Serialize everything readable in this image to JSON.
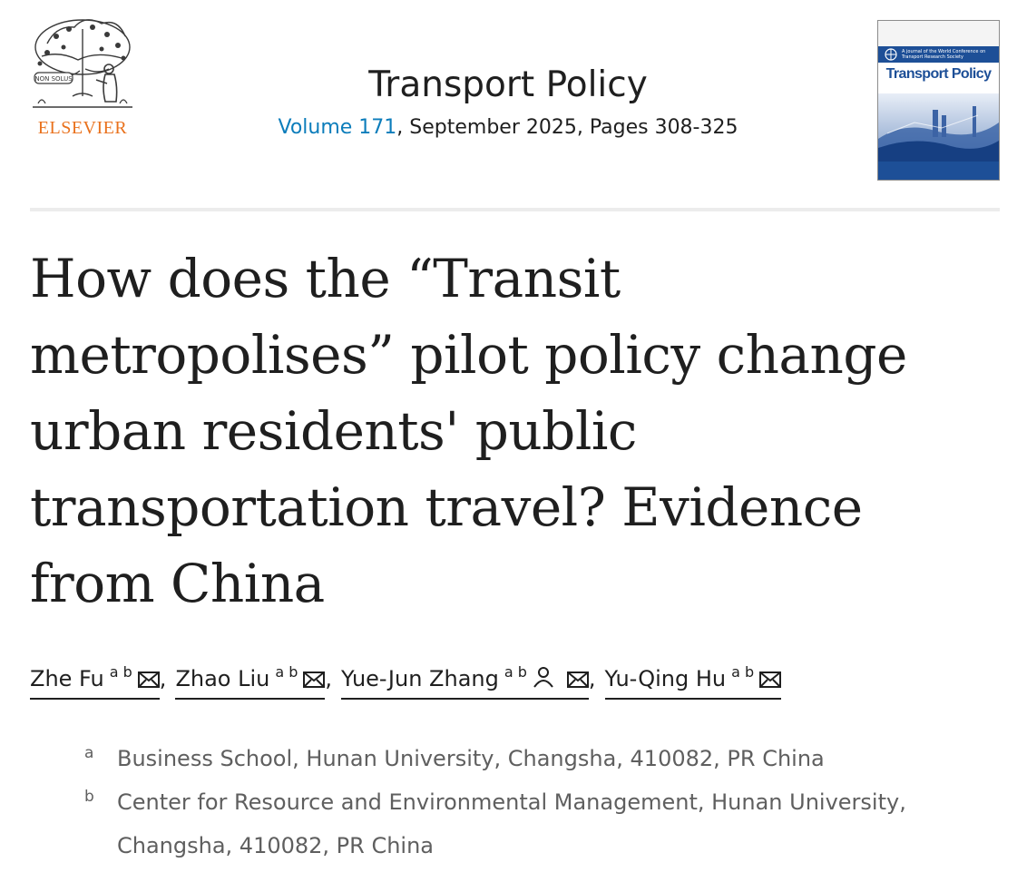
{
  "publisher": {
    "name": "ELSEVIER",
    "logo_motto": "NON SOLUS",
    "brand_color": "#e9711c"
  },
  "journal": {
    "title": "Transport Policy",
    "volume_link": "Volume 171",
    "issue_rest": ", September 2025, Pages 308-325",
    "link_color": "#0c7dbb"
  },
  "cover": {
    "band_text": "A journal of the World Conference on Transport Research Society",
    "title": "Transport Policy",
    "brand_color": "#1d4f97"
  },
  "article": {
    "title": "How does the “Transit metropolises” pilot policy change urban residents' public transportation travel? Evidence from China"
  },
  "authors": [
    {
      "name": "Zhe Fu",
      "affils": "a b",
      "icons": [
        "envelope-icon"
      ]
    },
    {
      "name": "Zhao Liu",
      "affils": "a b",
      "icons": [
        "envelope-icon"
      ]
    },
    {
      "name": "Yue-Jun Zhang",
      "affils": "a b",
      "icons": [
        "person-icon",
        "envelope-icon"
      ]
    },
    {
      "name": "Yu-Qing Hu",
      "affils": "a b",
      "icons": [
        "envelope-icon"
      ]
    }
  ],
  "separator": ",",
  "affiliations": [
    {
      "label": "a",
      "text": "Business School, Hunan University, Changsha, 410082, PR China"
    },
    {
      "label": "b",
      "text": "Center for Resource and Environmental Management, Hunan University,"
    },
    {
      "label": "",
      "text": "Changsha, 410082, PR China"
    }
  ]
}
